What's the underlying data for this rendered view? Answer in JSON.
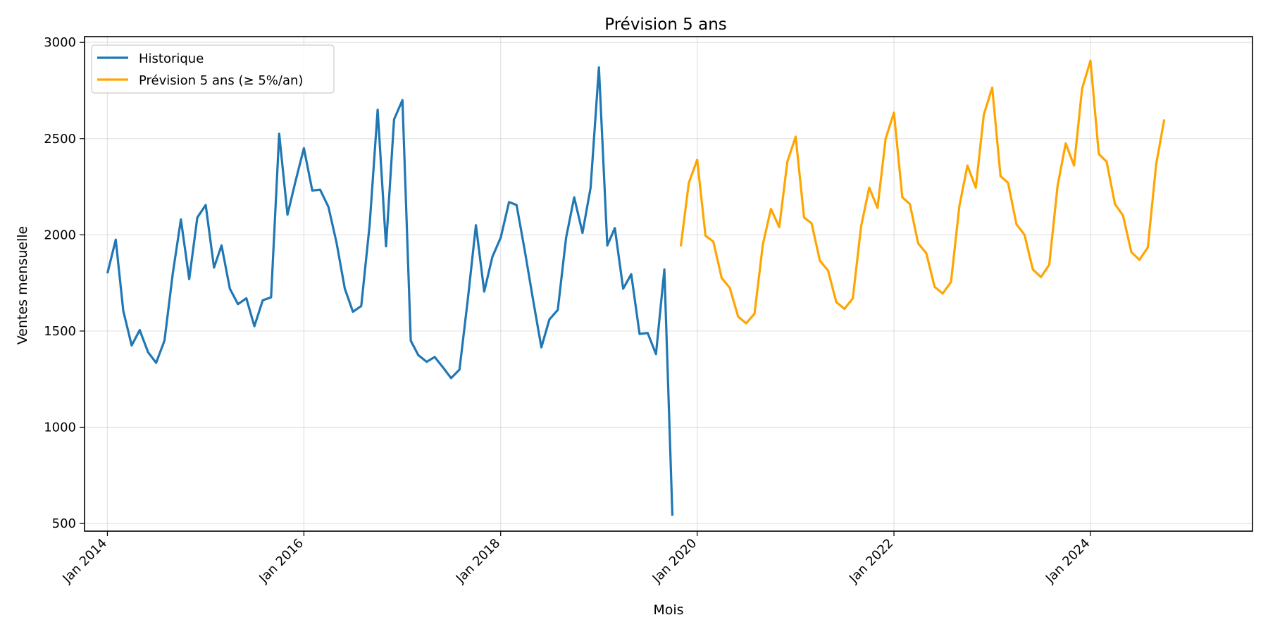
{
  "chart_data": {
    "type": "line",
    "title": "Prévision 5 ans",
    "xlabel": "Mois",
    "ylabel": "Ventes mensuelle",
    "xlim": [
      "2013-10-08",
      "2025-08-25"
    ],
    "ylim": [
      460,
      3030
    ],
    "grid": true,
    "legend_position": "top-left",
    "x_ticks": [
      {
        "date": "2014-01-01",
        "label": "Jan 2014"
      },
      {
        "date": "2016-01-01",
        "label": "Jan 2016"
      },
      {
        "date": "2018-01-01",
        "label": "Jan 2018"
      },
      {
        "date": "2020-01-01",
        "label": "Jan 2020"
      },
      {
        "date": "2022-01-01",
        "label": "Jan 2022"
      },
      {
        "date": "2024-01-01",
        "label": "Jan 2024"
      }
    ],
    "y_ticks": [
      500,
      1000,
      1500,
      2000,
      2500,
      3000
    ],
    "series": [
      {
        "name": "Historique",
        "color": "#1f77b4",
        "start": "2014-01",
        "values": [
          1800,
          1975,
          1605,
          1425,
          1505,
          1390,
          1335,
          1450,
          1800,
          2080,
          1770,
          2090,
          2155,
          1830,
          1945,
          1720,
          1640,
          1670,
          1525,
          1660,
          1675,
          2525,
          2105,
          2280,
          2450,
          2230,
          2235,
          2145,
          1960,
          1720,
          1600,
          1630,
          2050,
          2650,
          1940,
          2600,
          2700,
          1450,
          1375,
          1340,
          1365,
          1310,
          1255,
          1300,
          1665,
          2050,
          1705,
          1885,
          1985,
          2170,
          2155,
          1915,
          1665,
          1415,
          1560,
          1610,
          1985,
          2195,
          2010,
          2245,
          2870,
          1945,
          2035,
          1720,
          1795,
          1485,
          1490,
          1380,
          1820,
          540
        ]
      },
      {
        "name": "Prévision 5 ans (≥ 5%/an)",
        "color": "#ffa500",
        "start": "2019-11",
        "values": [
          1940,
          2270,
          2390,
          1995,
          1965,
          1775,
          1725,
          1575,
          1540,
          1590,
          1950,
          2135,
          2040,
          2380,
          2510,
          2090,
          2060,
          1865,
          1815,
          1650,
          1615,
          1670,
          2045,
          2245,
          2140,
          2500,
          2635,
          2195,
          2160,
          1955,
          1905,
          1730,
          1695,
          1755,
          2150,
          2360,
          2245,
          2625,
          2765,
          2305,
          2270,
          2055,
          2000,
          1820,
          1780,
          1845,
          2255,
          2475,
          2360,
          2760,
          2905,
          2420,
          2380,
          2160,
          2100,
          1910,
          1870,
          1935,
          2365,
          2600
        ]
      }
    ]
  }
}
